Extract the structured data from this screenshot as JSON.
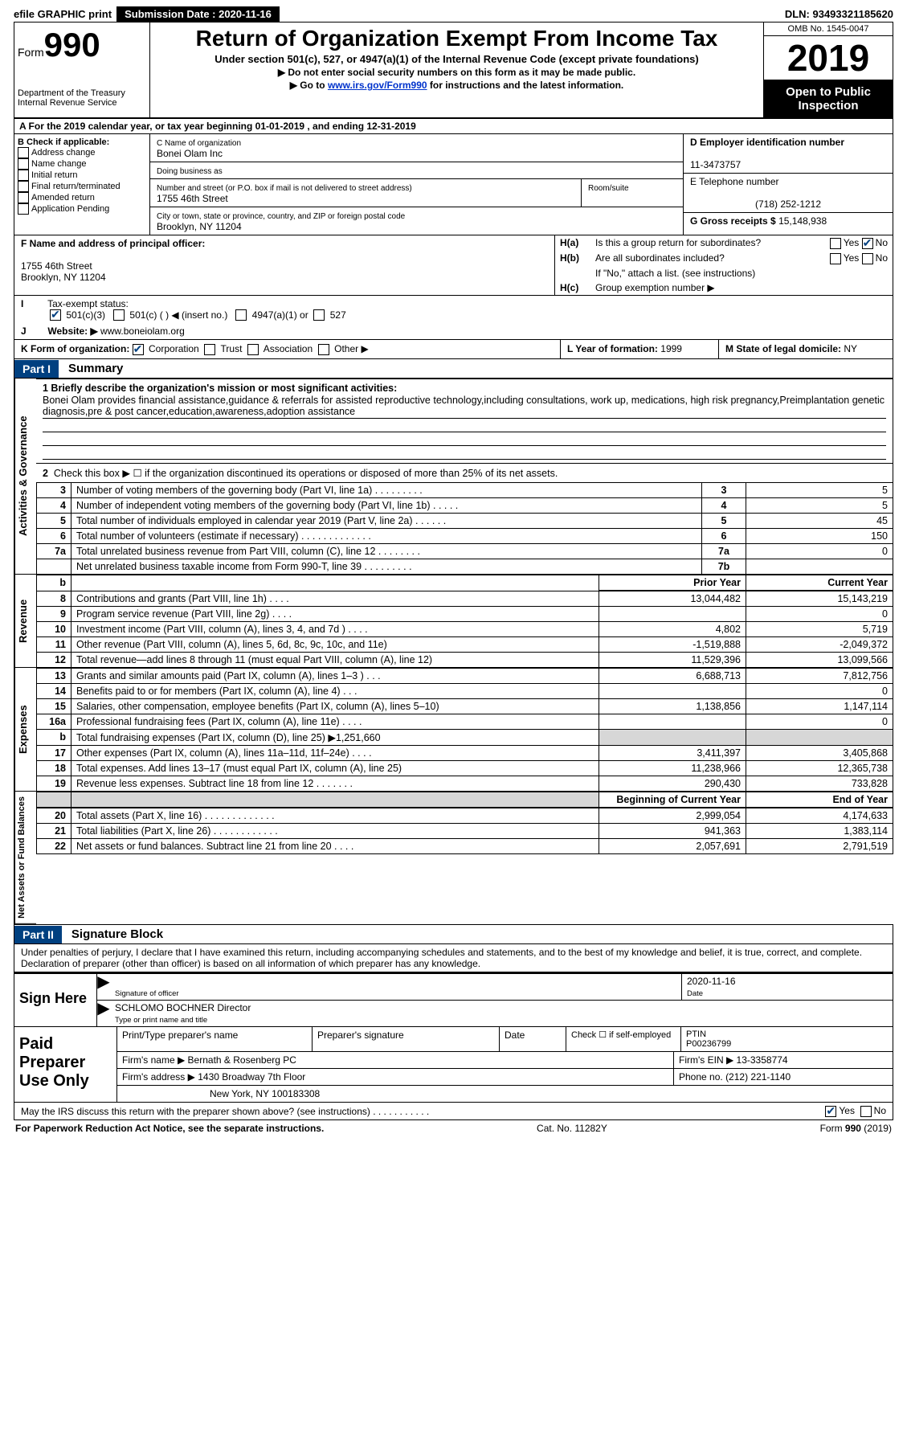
{
  "top": {
    "efile": "efile GRAPHIC print",
    "submission": "Submission Date : 2020-11-16",
    "dln": "DLN: 93493321185620"
  },
  "header": {
    "form_word": "Form",
    "form_no": "990",
    "dept": "Department of the Treasury\nInternal Revenue Service",
    "title": "Return of Organization Exempt From Income Tax",
    "under": "Under section 501(c), 527, or 4947(a)(1) of the Internal Revenue Code (except private foundations)",
    "line1": "▶ Do not enter social security numbers on this form as it may be made public.",
    "line2_pre": "▶ Go to ",
    "line2_link": "www.irs.gov/Form990",
    "line2_post": " for instructions and the latest information.",
    "omb": "OMB No. 1545-0047",
    "year": "2019",
    "inspect": "Open to Public Inspection"
  },
  "A": "A For the 2019 calendar year, or tax year beginning 01-01-2019     , and ending 12-31-2019",
  "B": {
    "label": "B Check if applicable:",
    "items": [
      "Address change",
      "Name change",
      "Initial return",
      "Final return/terminated",
      "Amended return",
      "Application Pending"
    ]
  },
  "C": {
    "name_label": "C Name of organization",
    "name": "Bonei Olam Inc",
    "dba_label": "Doing business as",
    "dba": "",
    "street_label": "Number and street (or P.O. box if mail is not delivered to street address)",
    "room_label": "Room/suite",
    "street": "1755 46th Street",
    "city_label": "City or town, state or province, country, and ZIP or foreign postal code",
    "city": "Brooklyn, NY  11204"
  },
  "D": {
    "label": "D Employer identification number",
    "ein": "11-3473757"
  },
  "E": {
    "label": "E Telephone number",
    "phone": "(718) 252-1212"
  },
  "G": {
    "label": "G Gross receipts $",
    "amount": "15,148,938"
  },
  "F": {
    "label": "F  Name and address of principal officer:",
    "addr1": "1755 46th Street",
    "addr2": "Brooklyn, NY  11204"
  },
  "H": {
    "a_label": "H(a)",
    "a_text": "Is this a group return for subordinates?",
    "a_yes": "Yes",
    "a_no": "No",
    "b_label": "H(b)",
    "b_text": "Are all subordinates included?",
    "b_yes": "Yes",
    "b_no": "No",
    "b_note": "If \"No,\" attach a list. (see instructions)",
    "c_label": "H(c)",
    "c_text": "Group exemption number ▶"
  },
  "I": "Tax-exempt status:",
  "I_opts": {
    "a": "501(c)(3)",
    "b": "501(c) (   ) ◀ (insert no.)",
    "c": "4947(a)(1) or",
    "d": "527"
  },
  "J": {
    "label": "Website: ▶",
    "value": "www.boneiolam.org"
  },
  "K": {
    "label": "K Form of organization:",
    "opts": [
      "Corporation",
      "Trust",
      "Association",
      "Other ▶"
    ]
  },
  "L": {
    "label": "L Year of formation:",
    "value": "1999"
  },
  "M": {
    "label": "M State of legal domicile:",
    "value": "NY"
  },
  "partI": {
    "title": "Part I",
    "sub": "Summary"
  },
  "mission": {
    "label": "1   Briefly describe the organization's mission or most significant activities:",
    "text": "Bonei Olam provides financial assistance,guidance & referrals for assisted reproductive technology,including consultations, work up, medications, high risk pregnancy,Preimplantation genetic diagnosis,pre & post cancer,education,awareness,adoption assistance"
  },
  "line2": "Check this box ▶ ☐  if the organization discontinued its operations or disposed of more than 25% of its net assets.",
  "gov_rows": [
    {
      "n": "3",
      "desc": "Number of voting members of the governing body (Part VI, line 1a)   .    .    .    .    .    .    .    .    .",
      "box": "3",
      "val": "5"
    },
    {
      "n": "4",
      "desc": "Number of independent voting members of the governing body (Part VI, line 1b)   .    .    .    .    .",
      "box": "4",
      "val": "5"
    },
    {
      "n": "5",
      "desc": "Total number of individuals employed in calendar year 2019 (Part V, line 2a)   .    .    .    .    .    .",
      "box": "5",
      "val": "45"
    },
    {
      "n": "6",
      "desc": "Total number of volunteers (estimate if necessary)   .    .    .    .    .    .    .    .    .    .    .    .    .",
      "box": "6",
      "val": "150"
    },
    {
      "n": "7a",
      "desc": "Total unrelated business revenue from Part VIII, column (C), line 12   .    .    .    .    .    .    .    .",
      "box": "7a",
      "val": "0"
    },
    {
      "n": "",
      "desc": "Net unrelated business taxable income from Form 990-T, line 39    .    .    .    .    .    .    .    .    .",
      "box": "7b",
      "val": ""
    }
  ],
  "col_headers": {
    "prior": "Prior Year",
    "current": "Current Year"
  },
  "revenue_rows": [
    {
      "n": "8",
      "desc": "Contributions and grants (Part VIII, line 1h)   .    .    .    .",
      "p": "13,044,482",
      "c": "15,143,219"
    },
    {
      "n": "9",
      "desc": "Program service revenue (Part VIII, line 2g)   .    .    .    .",
      "p": "",
      "c": "0"
    },
    {
      "n": "10",
      "desc": "Investment income (Part VIII, column (A), lines 3, 4, and 7d )   .    .    .    .",
      "p": "4,802",
      "c": "5,719"
    },
    {
      "n": "11",
      "desc": "Other revenue (Part VIII, column (A), lines 5, 6d, 8c, 9c, 10c, and 11e)",
      "p": "-1,519,888",
      "c": "-2,049,372"
    },
    {
      "n": "12",
      "desc": "Total revenue—add lines 8 through 11 (must equal Part VIII, column (A), line 12)",
      "p": "11,529,396",
      "c": "13,099,566"
    }
  ],
  "expense_rows": [
    {
      "n": "13",
      "desc": "Grants and similar amounts paid (Part IX, column (A), lines 1–3 )   .    .    .",
      "p": "6,688,713",
      "c": "7,812,756"
    },
    {
      "n": "14",
      "desc": "Benefits paid to or for members (Part IX, column (A), line 4)   .    .    .",
      "p": "",
      "c": "0"
    },
    {
      "n": "15",
      "desc": "Salaries, other compensation, employee benefits (Part IX, column (A), lines 5–10)",
      "p": "1,138,856",
      "c": "1,147,114"
    },
    {
      "n": "16a",
      "desc": "Professional fundraising fees (Part IX, column (A), line 11e)   .    .    .    .",
      "p": "",
      "c": "0"
    },
    {
      "n": "b",
      "desc": "Total fundraising expenses (Part IX, column (D), line 25) ▶1,251,660",
      "p": "shade",
      "c": "shade"
    },
    {
      "n": "17",
      "desc": "Other expenses (Part IX, column (A), lines 11a–11d, 11f–24e)   .    .    .    .",
      "p": "3,411,397",
      "c": "3,405,868"
    },
    {
      "n": "18",
      "desc": "Total expenses. Add lines 13–17 (must equal Part IX, column (A), line 25)",
      "p": "11,238,966",
      "c": "12,365,738"
    },
    {
      "n": "19",
      "desc": "Revenue less expenses. Subtract line 18 from line 12 .    .    .    .    .    .    .",
      "p": "290,430",
      "c": "733,828"
    }
  ],
  "na_headers": {
    "begin": "Beginning of Current Year",
    "end": "End of Year"
  },
  "na_rows": [
    {
      "n": "20",
      "desc": "Total assets (Part X, line 16)   .    .    .    .    .    .    .    .    .    .    .    .    .",
      "p": "2,999,054",
      "c": "4,174,633"
    },
    {
      "n": "21",
      "desc": "Total liabilities (Part X, line 26)   .    .    .    .    .    .    .    .    .    .    .    .",
      "p": "941,363",
      "c": "1,383,114"
    },
    {
      "n": "22",
      "desc": "Net assets or fund balances. Subtract line 21 from line 20   .    .    .    .",
      "p": "2,057,691",
      "c": "2,791,519"
    }
  ],
  "partII": {
    "title": "Part II",
    "sub": "Signature Block"
  },
  "penalty": "Under penalties of perjury, I declare that I have examined this return, including accompanying schedules and statements, and to the best of my knowledge and belief, it is true, correct, and complete. Declaration of preparer (other than officer) is based on all information of which preparer has any knowledge.",
  "sign": {
    "here": "Sign Here",
    "sig_label": "Signature of officer",
    "date": "2020-11-16",
    "date_label": "Date",
    "name": "SCHLOMO BOCHNER  Director",
    "type_label": "Type or print name and title"
  },
  "prep": {
    "label": "Paid Preparer Use Only",
    "h1": "Print/Type preparer's name",
    "h2": "Preparer's signature",
    "h3": "Date",
    "check": "Check ☐ if self-employed",
    "ptin_l": "PTIN",
    "ptin": "P00236799",
    "firm_l": "Firm's name    ▶",
    "firm": "Bernath & Rosenberg PC",
    "ein_l": "Firm's EIN ▶",
    "ein": "13-3358774",
    "addr_l": "Firm's address ▶",
    "addr1": "1430 Broadway 7th Floor",
    "phone_l": "Phone no.",
    "phone": "(212) 221-1140",
    "addr2": "New York, NY  100183308"
  },
  "discuss": {
    "text": "May the IRS discuss this return with the preparer shown above? (see instructions)   .    .    .    .    .    .    .    .    .    .    .",
    "yes": "Yes",
    "no": "No"
  },
  "footer": {
    "left": "For Paperwork Reduction Act Notice, see the separate instructions.",
    "mid": "Cat. No. 11282Y",
    "right": "Form 990 (2019)"
  },
  "side_labels": {
    "gov": "Activities & Governance",
    "rev": "Revenue",
    "exp": "Expenses",
    "na": "Net Assets or Fund Balances"
  },
  "colors": {
    "header_blue": "#004080",
    "link": "#0033cc",
    "shade": "#d7d7d7"
  }
}
